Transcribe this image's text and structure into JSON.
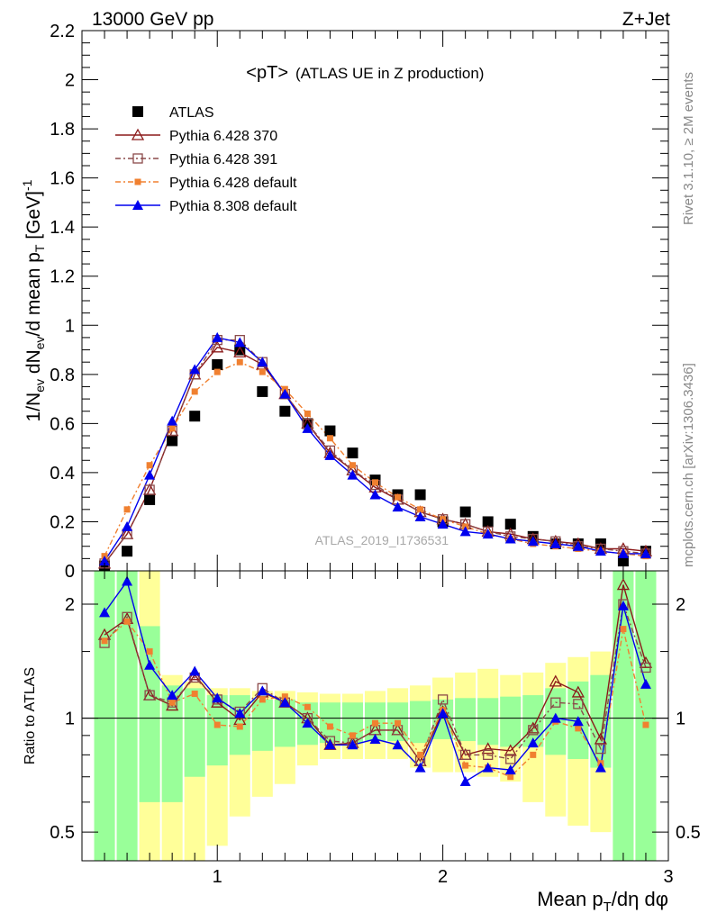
{
  "header": {
    "left": "13000 GeV pp",
    "right": "Z+Jet"
  },
  "side_labels": {
    "rivet": "Rivet 3.1.10, ≥ 2M events",
    "mcplots": "mcplots.cern.ch [arXiv:1306.3436]"
  },
  "watermark": "ATLAS_2019_I1736531",
  "colors": {
    "atlas": "#000000",
    "p370": "#8b1a1a",
    "p391": "#8b4a4a",
    "p6def": "#f08030",
    "p8def": "#0000ee",
    "band_inner": "#99ff99",
    "band_outer": "#ffff99"
  },
  "chart_data": [
    {
      "type": "scatter",
      "title": "<pT> (ATLAS UE in Z production)",
      "title_main": "<pT>",
      "title_sub": "(ATLAS UE in Z production)",
      "ylabel": "1/N_ev dN_ev/d mean p_T [GeV]^-1",
      "xlim": [
        0.4,
        3.0
      ],
      "ylim": [
        0,
        2.2
      ],
      "yticks": [
        0,
        0.2,
        0.4,
        0.6,
        0.8,
        1,
        1.2,
        1.4,
        1.6,
        1.8,
        2,
        2.2
      ],
      "ytick_labels": [
        "0",
        "0.2",
        "0.4",
        "0.6",
        "0.8",
        "1",
        "1.2",
        "1.4",
        "1.6",
        "1.8",
        "2",
        "2.2"
      ],
      "x": [
        0.5,
        0.6,
        0.7,
        0.8,
        0.9,
        1.0,
        1.1,
        1.2,
        1.3,
        1.4,
        1.5,
        1.6,
        1.7,
        1.8,
        1.9,
        2.0,
        2.1,
        2.2,
        2.3,
        2.4,
        2.5,
        2.6,
        2.7,
        2.8,
        2.9
      ],
      "series": [
        {
          "name": "ATLAS",
          "key": "atlas",
          "marker": "square-filled",
          "values": [
            0.02,
            0.08,
            0.29,
            0.53,
            0.63,
            0.84,
            0.9,
            0.73,
            0.65,
            0.6,
            0.57,
            0.48,
            0.37,
            0.31,
            0.31,
            0.2,
            0.24,
            0.2,
            0.19,
            0.14,
            0.11,
            0.11,
            0.11,
            0.04,
            0.08
          ]
        },
        {
          "name": "Pythia 6.428 370",
          "key": "p370",
          "marker": "triangle-open",
          "values": [
            0.03,
            0.15,
            0.33,
            0.57,
            0.8,
            0.91,
            0.89,
            0.84,
            0.72,
            0.6,
            0.48,
            0.41,
            0.34,
            0.29,
            0.24,
            0.21,
            0.19,
            0.16,
            0.15,
            0.13,
            0.12,
            0.11,
            0.09,
            0.09,
            0.08
          ]
        },
        {
          "name": "Pythia 6.428 391",
          "key": "p391",
          "marker": "square-open",
          "values": [
            0.03,
            0.15,
            0.33,
            0.57,
            0.8,
            0.94,
            0.94,
            0.85,
            0.72,
            0.6,
            0.49,
            0.41,
            0.35,
            0.29,
            0.24,
            0.21,
            0.19,
            0.16,
            0.14,
            0.13,
            0.12,
            0.1,
            0.09,
            0.08,
            0.07
          ]
        },
        {
          "name": "Pythia 6.428 default",
          "key": "p6def",
          "marker": "square-small",
          "values": [
            0.06,
            0.25,
            0.43,
            0.58,
            0.73,
            0.81,
            0.85,
            0.81,
            0.74,
            0.64,
            0.54,
            0.43,
            0.36,
            0.3,
            0.25,
            0.21,
            0.18,
            0.15,
            0.13,
            0.11,
            0.1,
            0.09,
            0.08,
            0.07,
            0.06
          ]
        },
        {
          "name": "Pythia 8.308 default",
          "key": "p8def",
          "marker": "triangle-filled",
          "values": [
            0.04,
            0.18,
            0.39,
            0.61,
            0.82,
            0.95,
            0.93,
            0.85,
            0.72,
            0.58,
            0.47,
            0.39,
            0.31,
            0.26,
            0.22,
            0.19,
            0.16,
            0.15,
            0.13,
            0.12,
            0.11,
            0.1,
            0.08,
            0.07,
            0.07
          ]
        }
      ]
    },
    {
      "type": "line",
      "ylabel": "Ratio to ATLAS",
      "xlabel": "Mean p_T/dη dφ",
      "xlim": [
        0.4,
        3.0
      ],
      "ylim": [
        0.42,
        2.45
      ],
      "log_y": true,
      "xticks": [
        1,
        2,
        3
      ],
      "xtick_labels": [
        "1",
        "2",
        "3"
      ],
      "yticks": [
        0.5,
        1,
        2
      ],
      "ytick_labels": [
        "0.5",
        "1",
        "2"
      ],
      "x": [
        0.5,
        0.6,
        0.7,
        0.8,
        0.9,
        1.0,
        1.1,
        1.2,
        1.3,
        1.4,
        1.5,
        1.6,
        1.7,
        1.8,
        1.9,
        2.0,
        2.1,
        2.2,
        2.3,
        2.4,
        2.5,
        2.6,
        2.7,
        2.8,
        2.9
      ],
      "bands": {
        "inner": {
          "lo": [
            0.4,
            0.4,
            0.6,
            0.6,
            0.7,
            0.75,
            0.8,
            0.82,
            0.84,
            0.85,
            0.86,
            0.86,
            0.87,
            0.87,
            0.86,
            0.88,
            0.87,
            0.85,
            0.84,
            0.84,
            0.8,
            0.78,
            0.74,
            0.4,
            0.42
          ],
          "hi": [
            2.45,
            2.45,
            1.75,
            1.22,
            1.2,
            1.15,
            1.15,
            1.12,
            1.12,
            1.1,
            1.1,
            1.1,
            1.1,
            1.1,
            1.11,
            1.12,
            1.13,
            1.13,
            1.14,
            1.15,
            1.2,
            1.25,
            1.3,
            2.45,
            2.45
          ]
        },
        "outer": {
          "lo": [
            0.4,
            0.4,
            0.4,
            0.4,
            0.4,
            0.46,
            0.55,
            0.62,
            0.67,
            0.75,
            0.78,
            0.78,
            0.78,
            0.78,
            0.74,
            0.72,
            0.72,
            0.7,
            0.68,
            0.6,
            0.55,
            0.52,
            0.5,
            0.4,
            0.4
          ],
          "hi": [
            2.45,
            2.45,
            2.45,
            1.3,
            1.25,
            1.2,
            1.2,
            1.18,
            1.18,
            1.17,
            1.16,
            1.16,
            1.18,
            1.2,
            1.22,
            1.28,
            1.32,
            1.35,
            1.3,
            1.32,
            1.4,
            1.45,
            1.5,
            2.45,
            2.45
          ]
        }
      },
      "series": [
        {
          "name": "Pythia 6.428 370",
          "key": "p370",
          "marker": "triangle-open",
          "values": [
            1.66,
            1.83,
            1.15,
            1.08,
            1.3,
            1.1,
            0.99,
            1.17,
            1.1,
            1.0,
            0.85,
            0.86,
            0.93,
            0.93,
            0.77,
            1.04,
            0.8,
            0.83,
            0.82,
            0.94,
            1.25,
            1.17,
            0.88,
            2.25,
            1.4
          ]
        },
        {
          "name": "Pythia 6.428 391",
          "key": "p391",
          "marker": "square-open",
          "values": [
            1.58,
            1.85,
            1.15,
            1.1,
            1.28,
            1.12,
            1.04,
            1.2,
            1.1,
            1.0,
            0.87,
            0.86,
            0.93,
            0.93,
            0.77,
            1.12,
            0.8,
            0.8,
            0.78,
            0.93,
            1.1,
            1.09,
            0.83,
            2.0,
            1.36
          ]
        },
        {
          "name": "Pythia 6.428 default",
          "key": "p6def",
          "marker": "square-small",
          "values": [
            1.6,
            1.8,
            1.5,
            1.1,
            1.16,
            0.96,
            0.95,
            1.12,
            1.14,
            1.07,
            0.95,
            0.9,
            0.97,
            0.97,
            0.8,
            1.05,
            0.75,
            0.74,
            0.7,
            0.8,
            0.98,
            0.94,
            0.76,
            1.72,
            0.96
          ]
        },
        {
          "name": "Pythia 8.308 default",
          "key": "p8def",
          "marker": "triangle-filled",
          "values": [
            1.9,
            2.3,
            1.38,
            1.15,
            1.33,
            1.13,
            1.03,
            1.18,
            1.1,
            0.97,
            0.85,
            0.85,
            0.88,
            0.85,
            0.74,
            1.03,
            0.68,
            0.74,
            0.73,
            0.86,
            1.0,
            0.98,
            0.74,
            1.98,
            1.23
          ]
        }
      ]
    }
  ]
}
